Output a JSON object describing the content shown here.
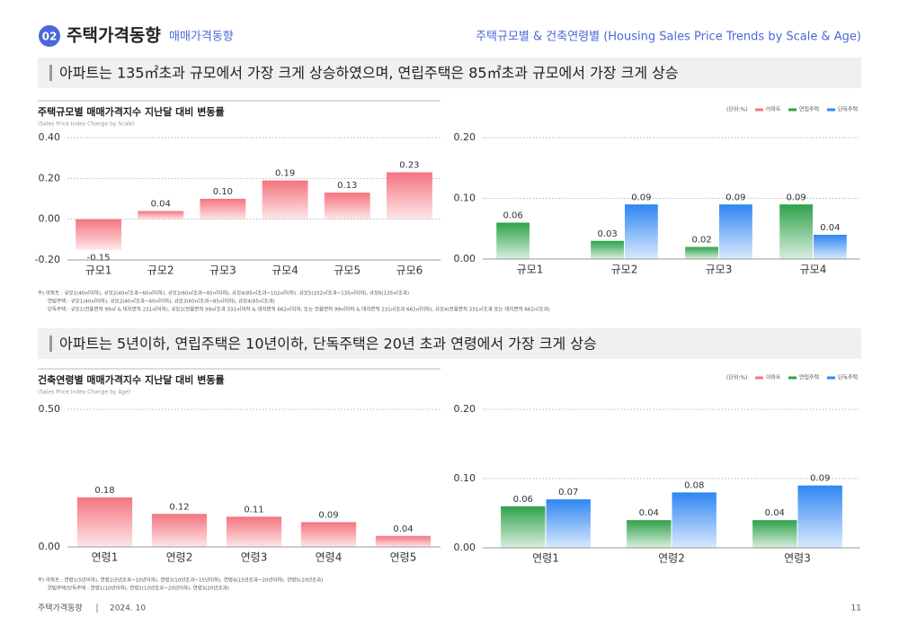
{
  "header": {
    "badge": "02",
    "title": "주택가격동향",
    "subtitle": "매매가격동향",
    "right": "주택규모별 & 건축연령별 (Housing Sales Price Trends by Scale & Age)"
  },
  "sections": [
    {
      "headline": "아파트는 135㎡초과 규모에서 가장 크게 상승하였으며, 연립주택은 85㎡초과 규모에서 가장 크게 상승",
      "notes": [
        "주) 아파트 : 규모1(40㎡이하), 규모2(40㎡초과~60㎡이하), 규모3(60㎡초과~85㎡이하), 규모4(85㎡초과~102㎡이하), 규모5(102㎡초과~135㎡이하), 규모6(135㎡초과)",
        "연립주택 : 규모1(40㎡이하), 규모2(40㎡초과~60㎡이하), 규모3(60㎡초과~85㎡이하), 규모4(85㎡초과)",
        "단독주택 : 규모1(전용면적 99㎡ & 대지면적 231㎡이하), 규모2(전용면적 99㎡초과 331㎡이하 & 대지면적 662㎡이하, 또는 전용면적 99㎡이하 & 대지면적 231㎡초과 662㎡이하), 규모4(전용면적 331㎡초과 또는 대지면적 662㎡초과)"
      ]
    },
    {
      "headline": "아파트는 5년이하, 연립주택은 10년이하, 단독주택은 20년 초과 연령에서 가장 크게 상승",
      "notes": [
        "주) 아파트 : 연령1(5년이하), 연령2(5년초과~10년이하), 연령3(10년초과~15년이하), 연령4(15년초과~20년이하), 연령5(20년초과)",
        "연립주택/단독주택 : 연령1(10년이하), 연령2(10년초과~20년이하), 연령3(20년초과)"
      ]
    }
  ],
  "chart_data": [
    {
      "type": "bar",
      "title": "주택규모별 매매가격지수 지난달 대비 변동률",
      "subtitle": "(Sales Price Index Change by Scale)",
      "categories": [
        "규모1",
        "규모2",
        "규모3",
        "규모4",
        "규모5",
        "규모6"
      ],
      "series": [
        {
          "name": "아파트",
          "color": "#f4747f",
          "values": [
            -0.15,
            0.04,
            0.1,
            0.19,
            0.13,
            0.23
          ],
          "value_labels": [
            "-0.15",
            "0.04",
            "0.10",
            "0.19",
            "0.13",
            "0.23"
          ]
        }
      ],
      "ylim": [
        -0.2,
        0.4
      ],
      "yticks": [
        {
          "value": -0.2,
          "label": "-0.20"
        },
        {
          "value": 0,
          "label": "0.00"
        },
        {
          "value": 0.2,
          "label": "0.20"
        },
        {
          "value": 0.4,
          "label": "0.40"
        }
      ],
      "grid": true
    },
    {
      "type": "bar",
      "unit": "(단위:%)",
      "categories": [
        "규모1",
        "규모2",
        "규모3",
        "규모4"
      ],
      "series": [
        {
          "name": "연립주택",
          "color": "#2ea24a",
          "values": [
            0.06,
            0.03,
            0.02,
            0.09
          ],
          "value_labels": [
            "0.06",
            "0.03",
            "0.02",
            "0.09"
          ]
        },
        {
          "name": "단독주택",
          "color": "#2f86f2",
          "values": [
            null,
            0.09,
            0.09,
            0.04
          ],
          "value_labels": [
            null,
            "0.09",
            "0.09",
            "0.04"
          ]
        }
      ],
      "ylim": [
        0,
        0.2
      ],
      "yticks": [
        {
          "value": 0,
          "label": "0.00"
        },
        {
          "value": 0.1,
          "label": "0.10"
        },
        {
          "value": 0.2,
          "label": "0.20"
        }
      ],
      "grid": true
    },
    {
      "type": "bar",
      "title": "건축연령별 매매가격지수 지난달 대비 변동률",
      "subtitle": "(Sales Price Index Change by Age)",
      "categories": [
        "연령1",
        "연령2",
        "연령3",
        "연령4",
        "연령5"
      ],
      "series": [
        {
          "name": "아파트",
          "color": "#f4747f",
          "values": [
            0.18,
            0.12,
            0.11,
            0.09,
            0.04
          ],
          "value_labels": [
            "0.18",
            "0.12",
            "0.11",
            "0.09",
            "0.04"
          ]
        }
      ],
      "ylim": [
        0,
        0.5
      ],
      "yticks": [
        {
          "value": 0,
          "label": "0.00"
        },
        {
          "value": 0.5,
          "label": "0.50"
        }
      ],
      "grid": true
    },
    {
      "type": "bar",
      "unit": "(단위:%)",
      "categories": [
        "연령1",
        "연령2",
        "연령3"
      ],
      "series": [
        {
          "name": "연립주택",
          "color": "#2ea24a",
          "values": [
            0.06,
            0.04,
            0.04
          ],
          "value_labels": [
            "0.06",
            "0.04",
            "0.04"
          ]
        },
        {
          "name": "단독주택",
          "color": "#2f86f2",
          "values": [
            0.07,
            0.08,
            0.09
          ],
          "value_labels": [
            "0.07",
            "0.08",
            "0.09"
          ]
        }
      ],
      "ylim": [
        0,
        0.2
      ],
      "yticks": [
        {
          "value": 0,
          "label": "0.00"
        },
        {
          "value": 0.1,
          "label": "0.10"
        },
        {
          "value": 0.2,
          "label": "0.20"
        }
      ],
      "grid": true
    }
  ],
  "footer": {
    "left": "주택가격동향",
    "date": "2024. 10",
    "page": "11"
  }
}
